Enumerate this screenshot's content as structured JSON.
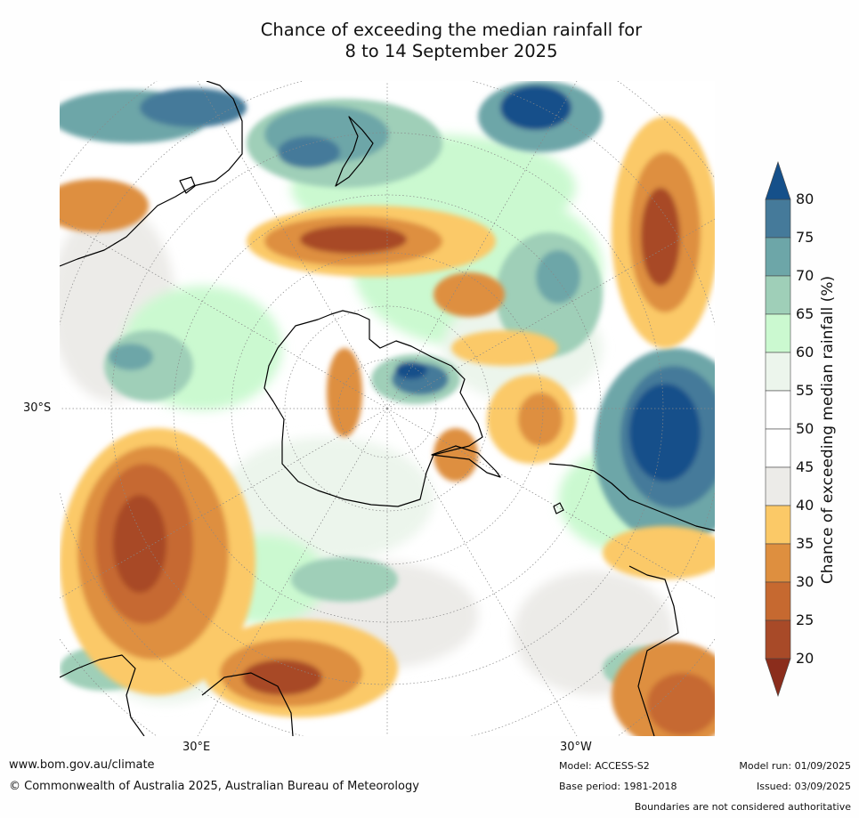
{
  "title": {
    "line1": "Chance of exceeding the median rainfall for",
    "line2": "8 to 14 September 2025"
  },
  "map": {
    "projection": "south-polar",
    "labels": {
      "lat_30s": "30°S",
      "lon_30e": "30°E",
      "lon_30w": "30°W"
    }
  },
  "colorbar": {
    "title": "Chance of exceeding median rainfall (%)",
    "ticks": [
      "80",
      "75",
      "70",
      "65",
      "60",
      "55",
      "50",
      "45",
      "40",
      "35",
      "30",
      "25",
      "20"
    ],
    "colors": {
      "over_80": "#15508a",
      "75_80": "#457a9a",
      "70_75": "#6da6a8",
      "65_70": "#9fcfb8",
      "60_65": "#cbf9d0",
      "55_60": "#ecf5ec",
      "50_55": "#ffffff",
      "45_50": "#ffffff",
      "40_45": "#ecebe8",
      "35_40": "#fbc967",
      "30_35": "#de8f3f",
      "25_30": "#c66930",
      "20_25": "#a84a28",
      "under_20": "#8b2d1c"
    }
  },
  "footer": {
    "website": "www.bom.gov.au/climate",
    "copyright": "© Commonwealth of Australia 2025, Australian Bureau of Meteorology",
    "model": "Model: ACCESS-S2",
    "base_period": "Base period: 1981-2018",
    "model_run": "Model run: 01/09/2025",
    "issued": "Issued: 03/09/2025",
    "disclaimer": "Boundaries are not considered authoritative"
  }
}
